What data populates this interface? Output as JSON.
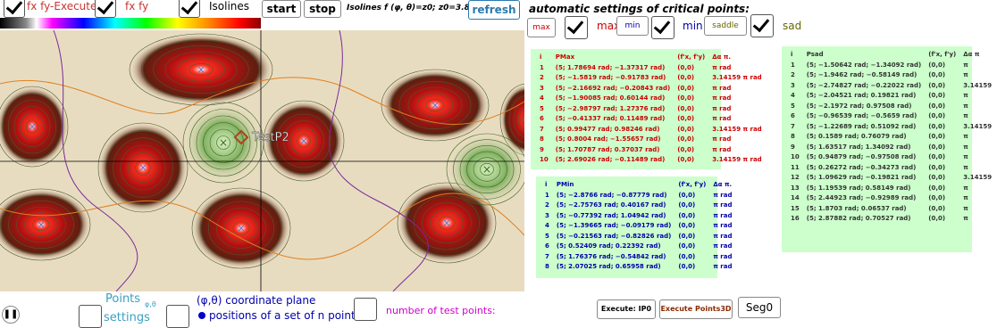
{
  "toolbar": {
    "fxfy_execute": "fx fy-Execute",
    "fxfy": "fx fy",
    "isolines": "Isolines",
    "start": "start",
    "stop": "stop",
    "isoline_info": "Isolines f (φ, θ)=z0; z0=3.86",
    "refresh": "refresh"
  },
  "auto": {
    "title": "automatic settings of critical points:",
    "max_btn": "max",
    "max_label": "max",
    "min_btn": "min",
    "min_label": "min",
    "saddle_btn": "saddle",
    "saddle_label": "sad"
  },
  "plot": {
    "label": "TestP2"
  },
  "bottom": {
    "points": "Points",
    "points_sub": "φ,θ",
    "settings": "settings",
    "plane": "(φ,θ) coordinate plane",
    "positions": "positions of a set of n points",
    "test_points": "number of test points:",
    "exec_ip0": "Execute: IP0",
    "exec_points3d": "Execute Points3D",
    "seg0": "Seg0"
  },
  "max_table": {
    "header": [
      "i",
      "PMax",
      "(f'x, f'y)",
      "Δα π."
    ],
    "rows": [
      [
        "1",
        "(5; 1.78694 rad; −1.37317 rad)",
        "(0,0)",
        "π rad"
      ],
      [
        "2",
        "(5; −1.5819 rad; −0.91783 rad)",
        "(0,0)",
        "3.14159 π rad"
      ],
      [
        "3",
        "(5; −2.16692 rad; −0.20843 rad)",
        "(0,0)",
        "π rad"
      ],
      [
        "4",
        "(5; −1.90085 rad; 0.60144 rad)",
        "(0,0)",
        "π rad"
      ],
      [
        "5",
        "(5; −2.98797 rad; 1.27376 rad)",
        "(0,0)",
        "π rad"
      ],
      [
        "6",
        "(5; −0.41337 rad; 0.11489 rad)",
        "(0,0)",
        "π rad"
      ],
      [
        "7",
        "(5; 0.99477 rad; 0.98246 rad)",
        "(0,0)",
        "3.14159 π rad"
      ],
      [
        "8",
        "(5; 0.8004 rad; −1.55657 rad)",
        "(0,0)",
        "π rad"
      ],
      [
        "9",
        "(5; 1.70787 rad; 0.37037 rad)",
        "(0,0)",
        "π rad"
      ],
      [
        "10",
        "(5; 2.69026 rad; −0.11489 rad)",
        "(0,0)",
        "3.14159 π rad"
      ]
    ]
  },
  "min_table": {
    "header": [
      "i",
      "PMin",
      "(f'x, f'y)",
      "Δα π."
    ],
    "rows": [
      [
        "1",
        "(5; −2.8766 rad; −0.87779 rad)",
        "(0,0)",
        "π rad"
      ],
      [
        "2",
        "(5; −2.75763 rad; 0.40167 rad)",
        "(0,0)",
        "π rad"
      ],
      [
        "3",
        "(5; −0.77392 rad; 1.04942 rad)",
        "(0,0)",
        "π rad"
      ],
      [
        "4",
        "(5; −1.39665 rad; −0.09179 rad)",
        "(0,0)",
        "π rad"
      ],
      [
        "5",
        "(5; −0.21563 rad; −0.82826 rad)",
        "(0,0)",
        "π rad"
      ],
      [
        "6",
        "(5; 0.52409 rad; 0.22392 rad)",
        "(0,0)",
        "π rad"
      ],
      [
        "7",
        "(5; 1.76376 rad; −0.54842 rad)",
        "(0,0)",
        "π rad"
      ],
      [
        "8",
        "(5; 2.07025 rad; 0.65958 rad)",
        "(0,0)",
        "π rad"
      ]
    ]
  },
  "sad_table": {
    "header": [
      "i",
      "Psad",
      "(f'x, f'y)",
      "Δα π"
    ],
    "rows": [
      [
        "1",
        "(5; −1.50642 rad; −1.34092 rad)",
        "(0,0)",
        "π"
      ],
      [
        "2",
        "(5; −1.9462 rad; −0.58149 rad)",
        "(0,0)",
        "π"
      ],
      [
        "3",
        "(5; −2.74827 rad; −0.22022 rad)",
        "(0,0)",
        "3.14159"
      ],
      [
        "4",
        "(5; −2.04521 rad; 0.19821 rad)",
        "(0,0)",
        "π"
      ],
      [
        "5",
        "(5; −2.1972 rad; 0.97508 rad)",
        "(0,0)",
        "π"
      ],
      [
        "6",
        "(5; −0.96539 rad; −0.5659 rad)",
        "(0,0)",
        "π"
      ],
      [
        "7",
        "(5; −1.22689 rad; 0.51092 rad)",
        "(0,0)",
        "3.14159"
      ],
      [
        "8",
        "(5; 0.1589 rad; 0.76079 rad)",
        "(0,0)",
        "π"
      ],
      [
        "9",
        "(5; 1.63517 rad; 1.34092 rad)",
        "(0,0)",
        "π"
      ],
      [
        "10",
        "(5; 0.94879 rad; −0.97508 rad)",
        "(0,0)",
        "π"
      ],
      [
        "11",
        "(5; 0.26272 rad; −0.34273 rad)",
        "(0,0)",
        "π"
      ],
      [
        "12",
        "(5; 1.09629 rad; −0.19821 rad)",
        "(0,0)",
        "3.14159"
      ],
      [
        "13",
        "(5; 1.19539 rad; 0.58149 rad)",
        "(0,0)",
        "π"
      ],
      [
        "14",
        "(5; 2.44923 rad; −0.92989 rad)",
        "(0,0)",
        "π"
      ],
      [
        "15",
        "(5; 1.8703 rad; 0.06537 rad)",
        "(0,0)",
        "π"
      ],
      [
        "16",
        "(5; 2.87882 rad; 0.70527 rad)",
        "(0,0)",
        "π"
      ]
    ]
  }
}
